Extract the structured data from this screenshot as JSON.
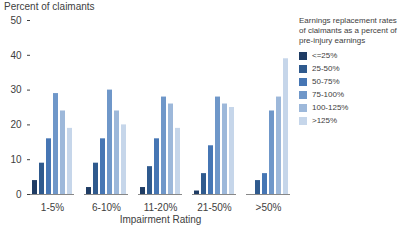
{
  "chart_data": {
    "type": "bar",
    "y_label": "Percent of claimants",
    "x_label": "Impairment Rating",
    "legend_title": "Earnings replacement rates of claimants as a percent of pre-injury earnings",
    "categories": [
      "1-5%",
      "6-10%",
      "11-20%",
      "21-50%",
      ">50%"
    ],
    "series": [
      {
        "name": "<=25%",
        "color": "#1f3c64",
        "values": [
          4,
          2,
          2,
          1,
          0
        ]
      },
      {
        "name": "25-50%",
        "color": "#2f5a8e",
        "values": [
          9,
          9,
          8,
          6,
          4
        ]
      },
      {
        "name": "50-75%",
        "color": "#4676b4",
        "values": [
          16,
          16,
          16,
          14,
          6
        ]
      },
      {
        "name": "75-100%",
        "color": "#6f97c9",
        "values": [
          29,
          30,
          28,
          28,
          24
        ]
      },
      {
        "name": "100-125%",
        "color": "#9db8da",
        "values": [
          24,
          24,
          26,
          26,
          28
        ]
      },
      {
        "name": ">125%",
        "color": "#c6d6ea",
        "values": [
          19,
          20,
          19,
          25,
          39
        ]
      }
    ],
    "ylim": [
      0,
      50
    ],
    "yticks": [
      0,
      10,
      20,
      30,
      40,
      50
    ],
    "grid": false,
    "legend": "right"
  }
}
